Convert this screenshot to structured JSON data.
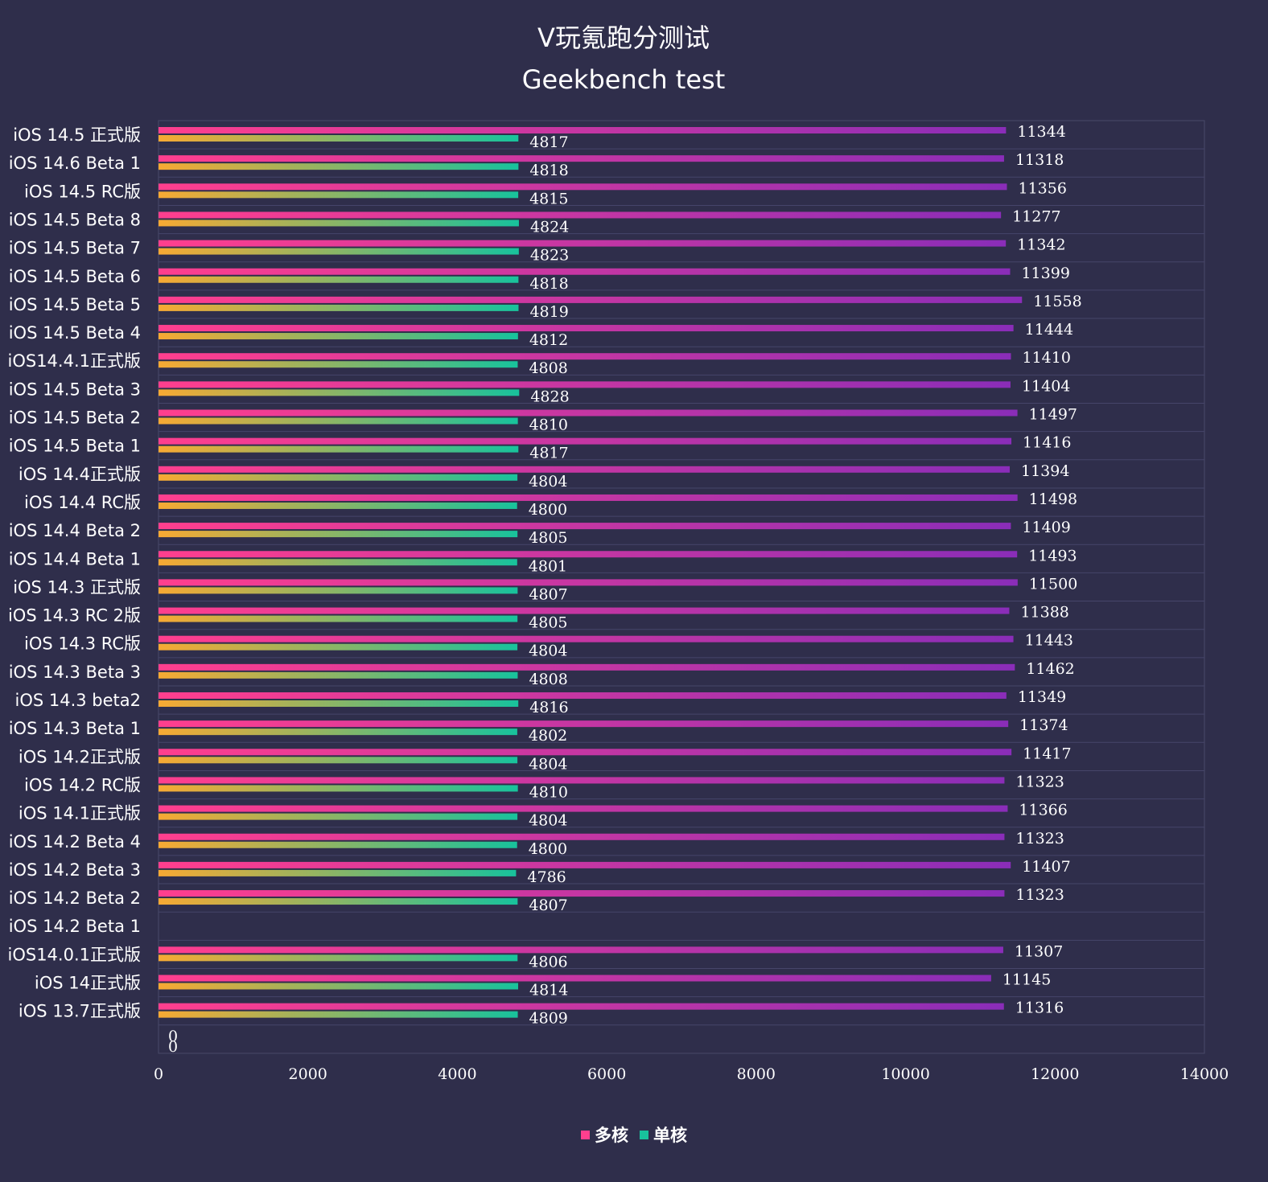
{
  "chart_data": {
    "type": "bar",
    "orientation": "horizontal",
    "title": "V玩氪跑分测试",
    "subtitle": "Geekbench test",
    "categories": [
      "iOS 14.5 正式版",
      "iOS 14.6 Beta 1",
      "iOS 14.5 RC版",
      "iOS 14.5 Beta 8",
      "iOS 14.5 Beta 7",
      "iOS 14.5 Beta 6",
      "iOS 14.5 Beta 5",
      "iOS 14.5 Beta 4",
      "iOS14.4.1正式版",
      "iOS 14.5 Beta 3",
      "iOS 14.5 Beta 2",
      "iOS 14.5 Beta 1",
      "iOS 14.4正式版",
      "iOS 14.4 RC版",
      "iOS 14.4 Beta 2",
      "iOS 14.4 Beta 1",
      "iOS 14.3 正式版",
      "iOS 14.3 RC 2版",
      "iOS 14.3 RC版",
      "iOS 14.3 Beta 3",
      "iOS 14.3 beta2",
      "iOS 14.3 Beta 1",
      "iOS 14.2正式版",
      "iOS 14.2 RC版",
      "iOS 14.1正式版",
      "iOS 14.2 Beta 4",
      "iOS 14.2 Beta 3",
      "iOS 14.2 Beta 2",
      "iOS 14.2 Beta 1",
      "iOS14.0.1正式版",
      "iOS 14正式版",
      "iOS 13.7正式版",
      ""
    ],
    "series": [
      {
        "name": "多核",
        "values": [
          11344,
          11318,
          11356,
          11277,
          11342,
          11399,
          11558,
          11444,
          11410,
          11404,
          11497,
          11416,
          11394,
          11498,
          11409,
          11493,
          11500,
          11388,
          11443,
          11462,
          11349,
          11374,
          11417,
          11323,
          11366,
          11323,
          11407,
          11323,
          null,
          11307,
          11145,
          11316,
          0
        ],
        "color_start": "#ff3f8e",
        "color_end": "#8a2db8"
      },
      {
        "name": "单核",
        "values": [
          4817,
          4818,
          4815,
          4824,
          4823,
          4818,
          4819,
          4812,
          4808,
          4828,
          4810,
          4817,
          4804,
          4800,
          4805,
          4801,
          4807,
          4805,
          4804,
          4808,
          4816,
          4802,
          4804,
          4810,
          4804,
          4800,
          4786,
          4807,
          null,
          4806,
          4814,
          4809,
          0
        ],
        "color_start": "#f7a933",
        "color_end": "#18c29c"
      }
    ],
    "xlim": [
      0,
      14000
    ],
    "xticks": [
      0,
      2000,
      4000,
      6000,
      8000,
      10000,
      12000,
      14000
    ],
    "grid": true,
    "legend_position": "bottom",
    "background": "#2f2e4b"
  }
}
